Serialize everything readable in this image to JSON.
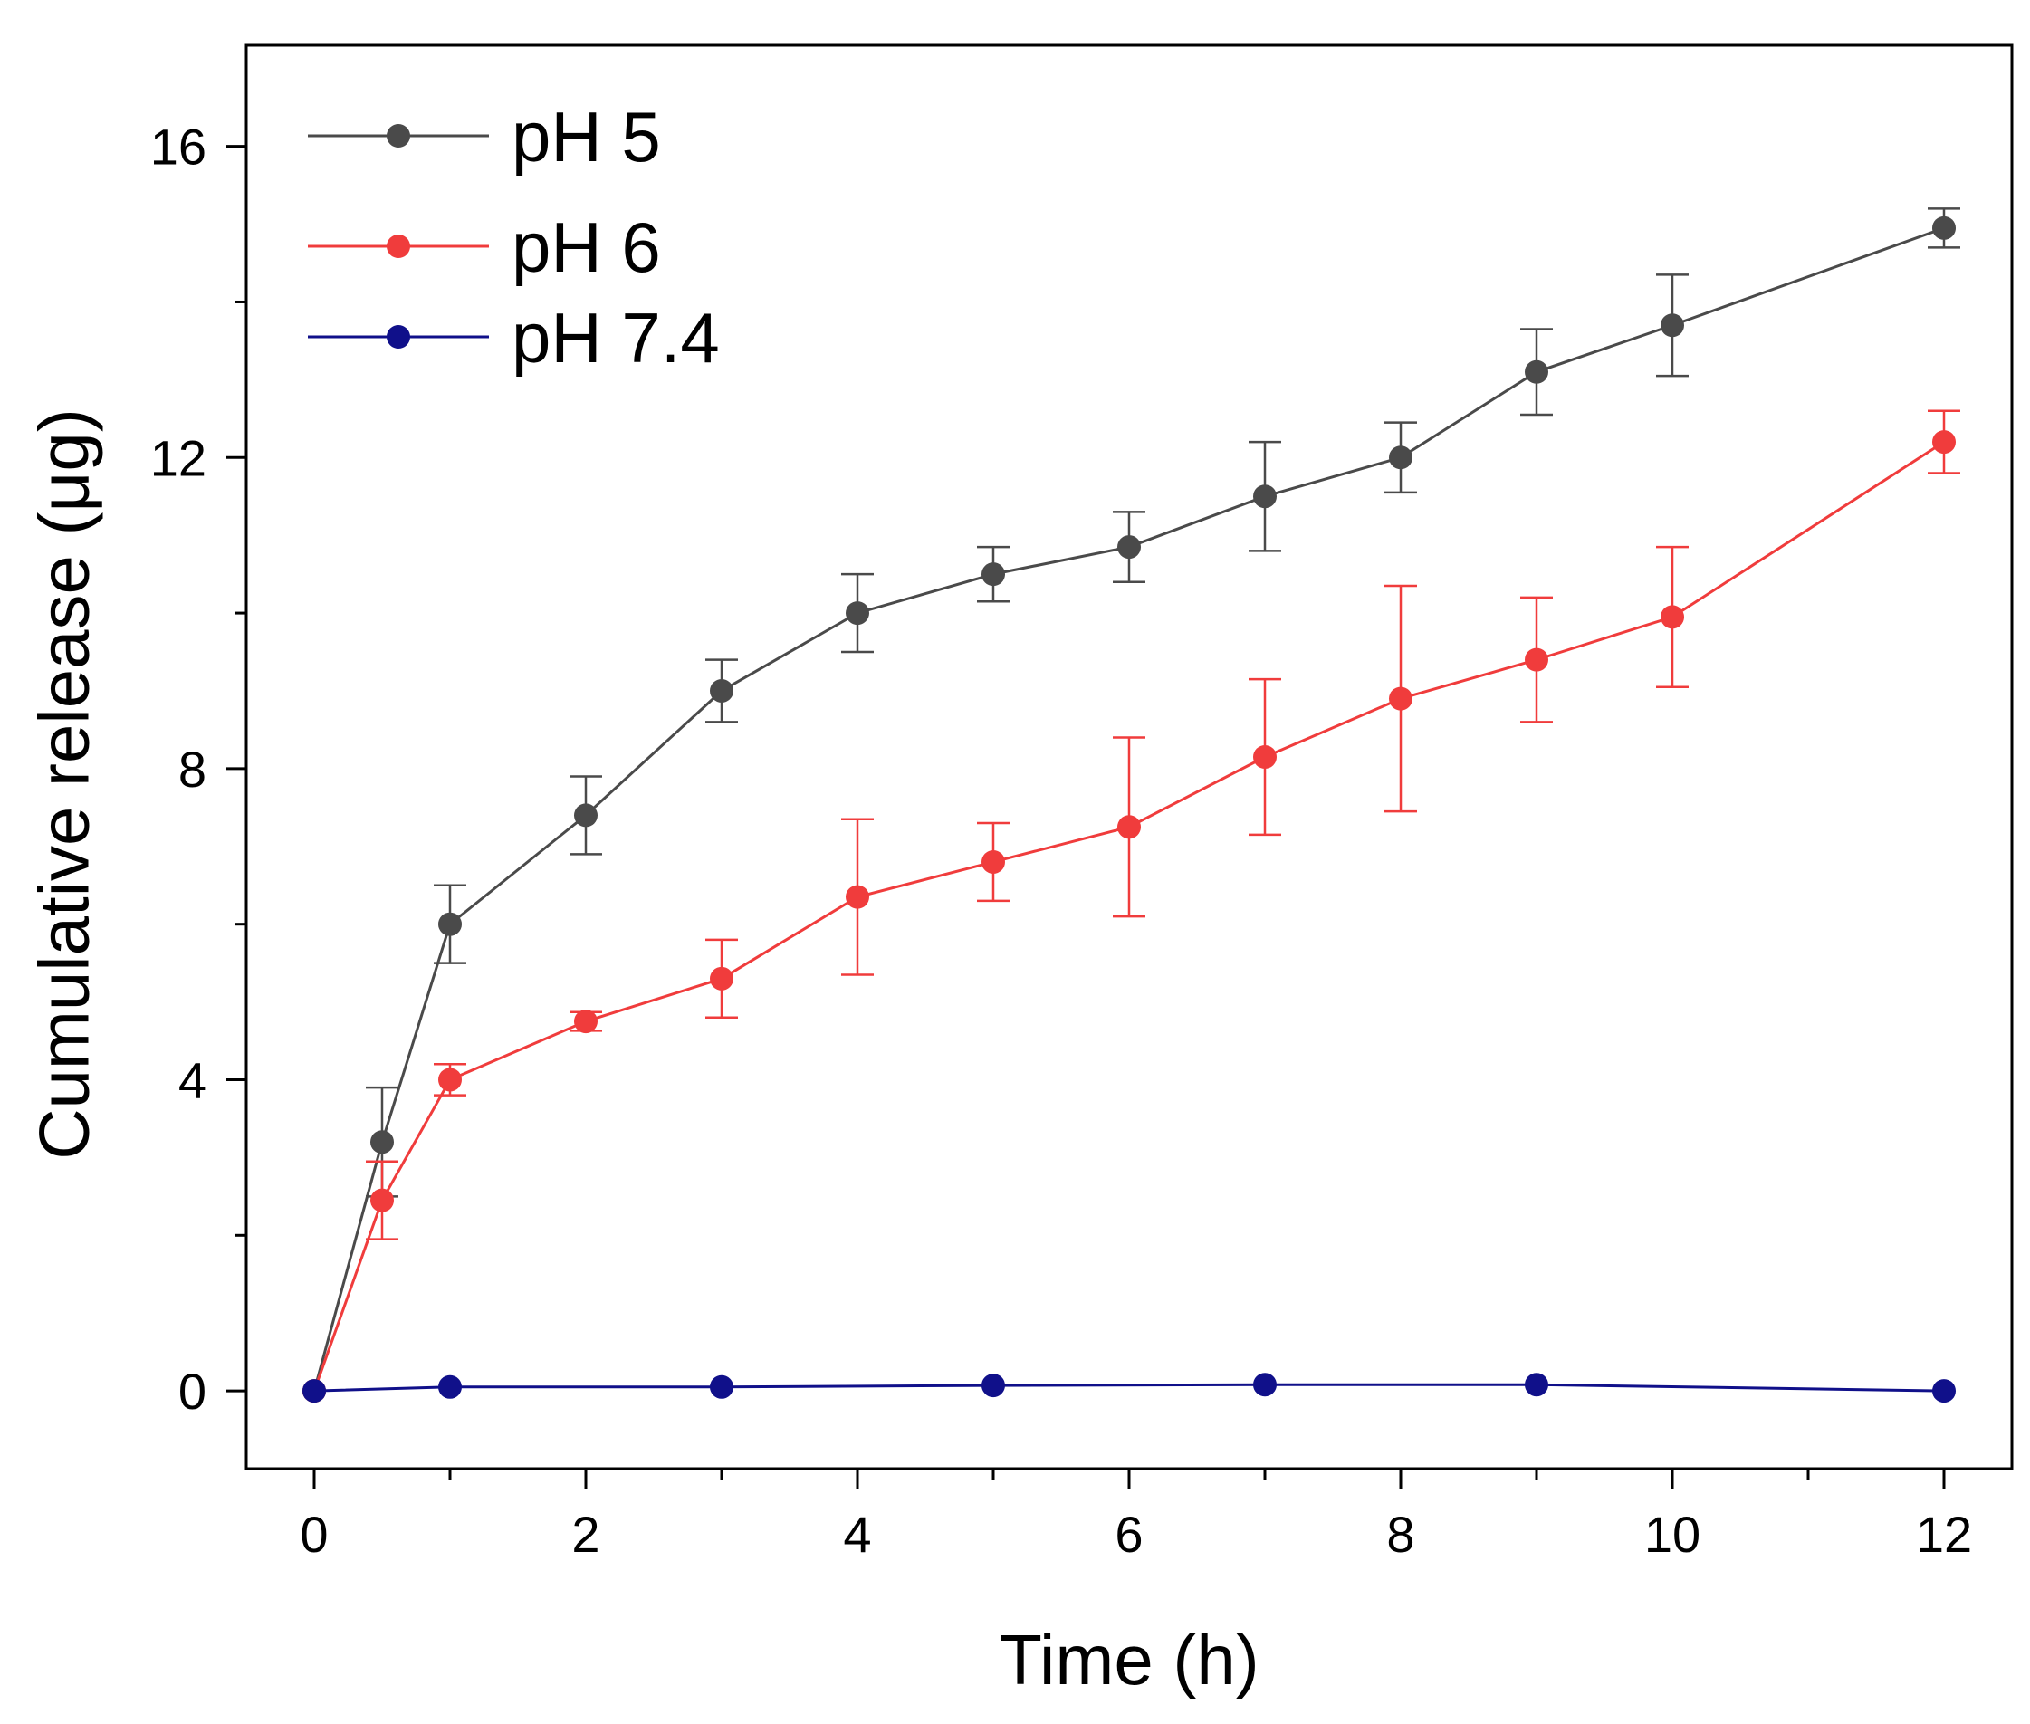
{
  "chart_data": {
    "type": "line",
    "xlabel": "Time (h)",
    "ylabel": "Cumulative release (μg)",
    "xlim": [
      -0.5,
      12.5
    ],
    "ylim": [
      -1,
      17.3
    ],
    "xticks": [
      0,
      2,
      4,
      6,
      8,
      10,
      12
    ],
    "xminor": [
      1,
      3,
      5,
      7,
      9,
      11
    ],
    "yticks": [
      0,
      4,
      8,
      12,
      16
    ],
    "yminor": [
      2,
      6,
      10,
      14
    ],
    "grid": false,
    "legend_position": "top-left",
    "series": [
      {
        "name": "pH 5",
        "color": "#4a4a4a",
        "points": [
          {
            "x": 0,
            "y": 0,
            "err": 0
          },
          {
            "x": 0.5,
            "y": 3.2,
            "err": 0.7
          },
          {
            "x": 1,
            "y": 6.0,
            "err": 0.5
          },
          {
            "x": 2,
            "y": 7.4,
            "err": 0.5
          },
          {
            "x": 3,
            "y": 9.0,
            "err": 0.4
          },
          {
            "x": 4,
            "y": 10.0,
            "err": 0.5
          },
          {
            "x": 5,
            "y": 10.5,
            "err": 0.35
          },
          {
            "x": 6,
            "y": 10.85,
            "err": 0.45
          },
          {
            "x": 7,
            "y": 11.5,
            "err": 0.7
          },
          {
            "x": 8,
            "y": 12.0,
            "err": 0.45
          },
          {
            "x": 9,
            "y": 13.1,
            "err": 0.55
          },
          {
            "x": 10,
            "y": 13.7,
            "err": 0.65
          },
          {
            "x": 12,
            "y": 14.95,
            "err": 0.25
          }
        ]
      },
      {
        "name": "pH 6",
        "color": "#f03c3c",
        "points": [
          {
            "x": 0,
            "y": 0,
            "err": 0
          },
          {
            "x": 0.5,
            "y": 2.45,
            "err": 0.5
          },
          {
            "x": 1,
            "y": 4.0,
            "err": 0.2
          },
          {
            "x": 2,
            "y": 4.75,
            "err": 0.12
          },
          {
            "x": 3,
            "y": 5.3,
            "err": 0.5
          },
          {
            "x": 4,
            "y": 6.35,
            "err": 1.0
          },
          {
            "x": 5,
            "y": 6.8,
            "err": 0.5
          },
          {
            "x": 6,
            "y": 7.25,
            "err": 1.15
          },
          {
            "x": 7,
            "y": 8.15,
            "err": 1.0
          },
          {
            "x": 8,
            "y": 8.9,
            "err": 1.45
          },
          {
            "x": 9,
            "y": 9.4,
            "err": 0.8
          },
          {
            "x": 10,
            "y": 9.95,
            "err": 0.9
          },
          {
            "x": 12,
            "y": 12.2,
            "err": 0.4
          }
        ]
      },
      {
        "name": "pH 7.4",
        "color": "#10108a",
        "points": [
          {
            "x": 0,
            "y": 0,
            "err": 0
          },
          {
            "x": 1,
            "y": 0.05,
            "err": 0
          },
          {
            "x": 3,
            "y": 0.05,
            "err": 0
          },
          {
            "x": 5,
            "y": 0.07,
            "err": 0
          },
          {
            "x": 7,
            "y": 0.08,
            "err": 0
          },
          {
            "x": 9,
            "y": 0.08,
            "err": 0
          },
          {
            "x": 12,
            "y": 0.0,
            "err": 0
          }
        ]
      }
    ]
  }
}
